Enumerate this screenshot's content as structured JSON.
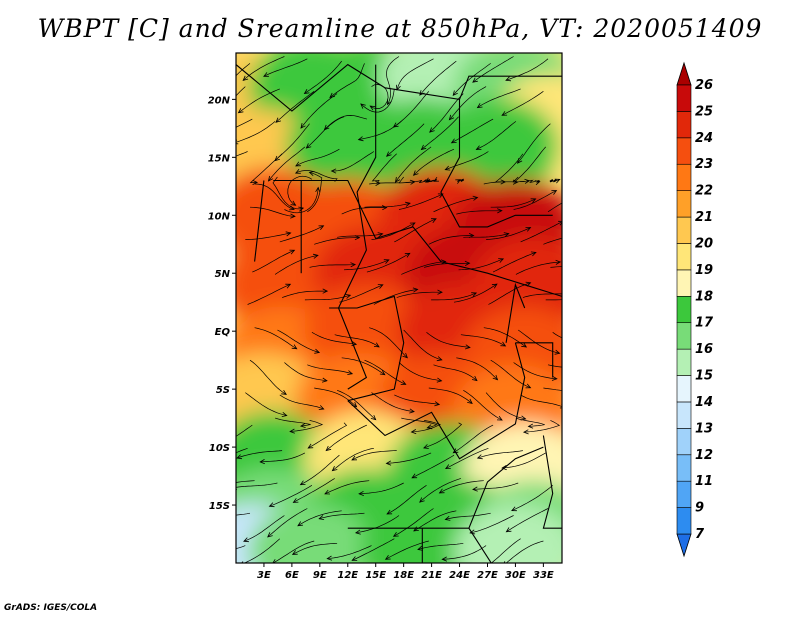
{
  "title": "WBPT [C] and Sreamline at 850hPa, VT: 2020051409",
  "footer": "GrADS: IGES/COLA",
  "chart_data": {
    "type": "heatmap",
    "variable": "Wet-bulb potential temperature [C] with streamlines at 850hPa",
    "valid_time": "2020051409",
    "lon_range": [
      0,
      35
    ],
    "lat_range": [
      -20,
      24
    ],
    "x_ticks": [
      {
        "value": 3,
        "label": "3E"
      },
      {
        "value": 6,
        "label": "6E"
      },
      {
        "value": 9,
        "label": "9E"
      },
      {
        "value": 12,
        "label": "12E"
      },
      {
        "value": 15,
        "label": "15E"
      },
      {
        "value": 18,
        "label": "18E"
      },
      {
        "value": 21,
        "label": "21E"
      },
      {
        "value": 24,
        "label": "24E"
      },
      {
        "value": 27,
        "label": "27E"
      },
      {
        "value": 30,
        "label": "30E"
      },
      {
        "value": 33,
        "label": "33E"
      }
    ],
    "y_ticks": [
      {
        "value": 20,
        "label": "20N"
      },
      {
        "value": 15,
        "label": "15N"
      },
      {
        "value": 10,
        "label": "10N"
      },
      {
        "value": 5,
        "label": "5N"
      },
      {
        "value": 0,
        "label": "EQ"
      },
      {
        "value": -5,
        "label": "5S"
      },
      {
        "value": -10,
        "label": "10S"
      },
      {
        "value": -15,
        "label": "15S"
      }
    ],
    "colorbar": {
      "levels": [
        7,
        9,
        11,
        12,
        13,
        14,
        15,
        16,
        17,
        18,
        19,
        20,
        21,
        22,
        23,
        24,
        25,
        26
      ],
      "labels": [
        "7",
        "9",
        "11",
        "12",
        "13",
        "14",
        "15",
        "16",
        "17",
        "18",
        "19",
        "20",
        "21",
        "22",
        "23",
        "24",
        "25",
        "26"
      ],
      "colors": [
        "#1e6ee6",
        "#2d8cf0",
        "#50a5f5",
        "#78bef8",
        "#a0d2fa",
        "#c8e6fc",
        "#e6f5fd",
        "#b4f0b4",
        "#78dc78",
        "#3cc83c",
        "#fff5b4",
        "#ffe678",
        "#ffc850",
        "#ffa028",
        "#ff7814",
        "#f54f0f",
        "#e1280a",
        "#c80a0a",
        "#aa0000"
      ]
    },
    "contour_fill": {
      "description": "Warmest values (23-26C) over the Congo basin and Sahel band 3N-12N; cooler green (16-18C) over Sahara north of 13N and over southern Africa south of 8S; isolated 13-15C near 18S 2E and north-central Sahara.",
      "cells": [
        {
          "lon": 2,
          "lat": 20,
          "value": 20
        },
        {
          "lon": 8,
          "lat": 21,
          "value": 17
        },
        {
          "lon": 15,
          "lat": 21,
          "value": 17
        },
        {
          "lon": 22,
          "lat": 22,
          "value": 15
        },
        {
          "lon": 30,
          "lat": 21,
          "value": 16
        },
        {
          "lon": 34,
          "lat": 18,
          "value": 19
        },
        {
          "lon": 3,
          "lat": 15,
          "value": 20
        },
        {
          "lon": 12,
          "lat": 16,
          "value": 17
        },
        {
          "lon": 20,
          "lat": 16,
          "value": 17
        },
        {
          "lon": 28,
          "lat": 16,
          "value": 17
        },
        {
          "lon": 4,
          "lat": 10,
          "value": 23
        },
        {
          "lon": 12,
          "lat": 9,
          "value": 23
        },
        {
          "lon": 22,
          "lat": 10,
          "value": 24
        },
        {
          "lon": 30,
          "lat": 9,
          "value": 25
        },
        {
          "lon": 5,
          "lat": 4,
          "value": 23
        },
        {
          "lon": 15,
          "lat": 5,
          "value": 24
        },
        {
          "lon": 25,
          "lat": 5,
          "value": 25
        },
        {
          "lon": 32,
          "lat": 4,
          "value": 24
        },
        {
          "lon": 5,
          "lat": -2,
          "value": 22
        },
        {
          "lon": 14,
          "lat": 0,
          "value": 23
        },
        {
          "lon": 24,
          "lat": 0,
          "value": 24
        },
        {
          "lon": 31,
          "lat": -2,
          "value": 23
        },
        {
          "lon": 3,
          "lat": -6,
          "value": 20
        },
        {
          "lon": 13,
          "lat": -6,
          "value": 22
        },
        {
          "lon": 22,
          "lat": -6,
          "value": 23
        },
        {
          "lon": 30,
          "lat": -7,
          "value": 22
        },
        {
          "lon": 4,
          "lat": -11,
          "value": 17
        },
        {
          "lon": 14,
          "lat": -11,
          "value": 19
        },
        {
          "lon": 23,
          "lat": -12,
          "value": 17
        },
        {
          "lon": 31,
          "lat": -12,
          "value": 18
        },
        {
          "lon": 4,
          "lat": -16,
          "value": 16
        },
        {
          "lon": 14,
          "lat": -16,
          "value": 17
        },
        {
          "lon": 24,
          "lat": -17,
          "value": 17
        },
        {
          "lon": 32,
          "lat": -17,
          "value": 16
        },
        {
          "lon": 2,
          "lat": -19,
          "value": 13
        },
        {
          "lon": 8,
          "lat": -19,
          "value": 16
        },
        {
          "lon": 20,
          "lat": -19,
          "value": 17
        },
        {
          "lon": 30,
          "lat": -19,
          "value": 15
        }
      ]
    },
    "streamlines": {
      "description": "Westerly/south-westerly monsoon inflow south of ~12N, cyclonic eddies near 12N 7E and 20N 15E, north-easterly flow over the Sahara, easterlies over southern Africa."
    }
  }
}
